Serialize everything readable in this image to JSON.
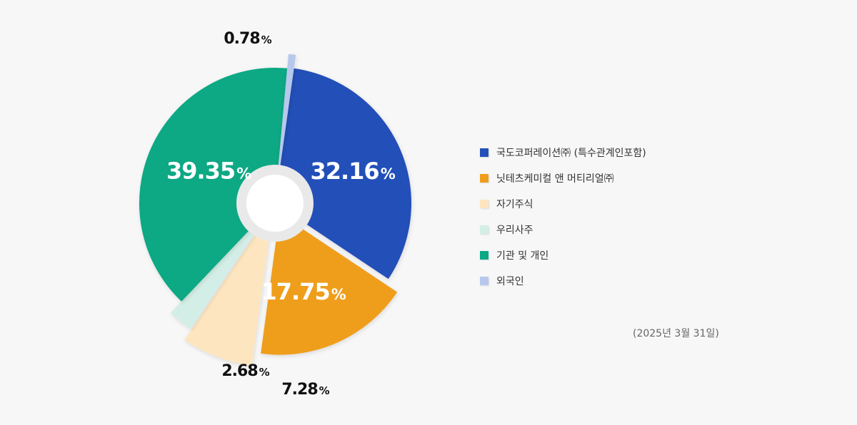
{
  "chart_data": {
    "type": "pie",
    "variant": "exploded-donut",
    "slices": [
      {
        "label": "국도코퍼레이션㈜ (특수관계인포함)",
        "value": 32.16,
        "display": "32.16",
        "color": "#2450b8"
      },
      {
        "label": "닛테츠케미컬 앤 머티리얼㈜",
        "value": 17.75,
        "display": "17.75",
        "color": "#ef9e1c"
      },
      {
        "label": "자기주식",
        "value": 7.28,
        "display": "7.28",
        "color": "#fde6bf"
      },
      {
        "label": "우리사주",
        "value": 2.68,
        "display": "2.68",
        "color": "#d3eee6"
      },
      {
        "label": "기관 및 개인",
        "value": 39.35,
        "display": "39.35",
        "color": "#0aa884"
      },
      {
        "label": "외국인",
        "value": 0.78,
        "display": "0.78",
        "color": "#b7c8ec"
      }
    ],
    "percent_sign": "%",
    "legend_position": "right"
  },
  "note": "(2025년 3월 31일)"
}
